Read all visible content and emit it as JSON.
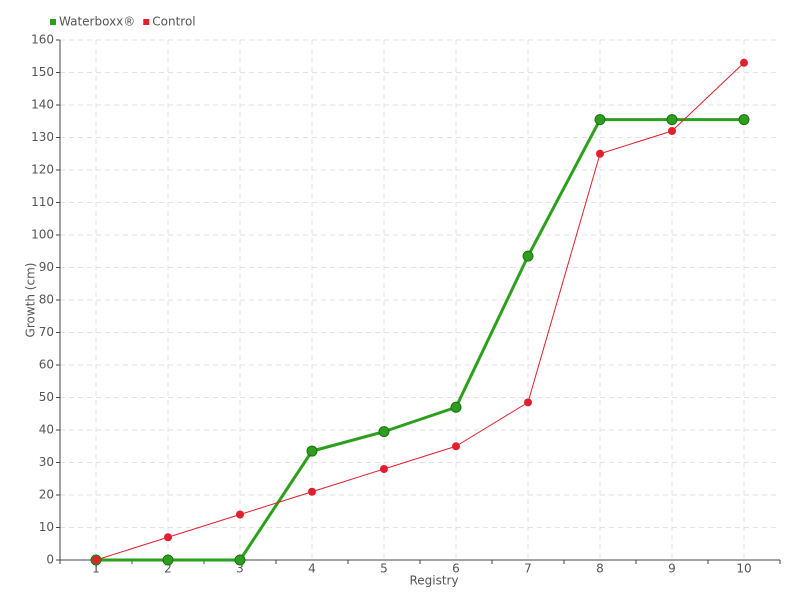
{
  "chart_data": {
    "type": "line",
    "x_label": "Registry",
    "y_label": "Growth (cm)",
    "categories": [
      "1",
      "2",
      "3",
      "4",
      "5",
      "6",
      "7",
      "8",
      "9",
      "10"
    ],
    "series": [
      {
        "name": "Waterboxx®",
        "color": "#2ca01c",
        "values": [
          0,
          0,
          0,
          33.5,
          39.5,
          47,
          93.5,
          135.5,
          135.5,
          135.5
        ]
      },
      {
        "name": "Control",
        "color": "#e21f2e",
        "values": [
          0,
          7,
          14,
          21,
          28,
          35,
          48.5,
          125,
          132,
          153
        ]
      }
    ],
    "ylim": [
      0,
      160
    ],
    "yticks": [
      0,
      10,
      20,
      30,
      40,
      50,
      60,
      70,
      80,
      90,
      100,
      110,
      120,
      130,
      140,
      150,
      160
    ],
    "grid": true,
    "legend": "top-left"
  }
}
